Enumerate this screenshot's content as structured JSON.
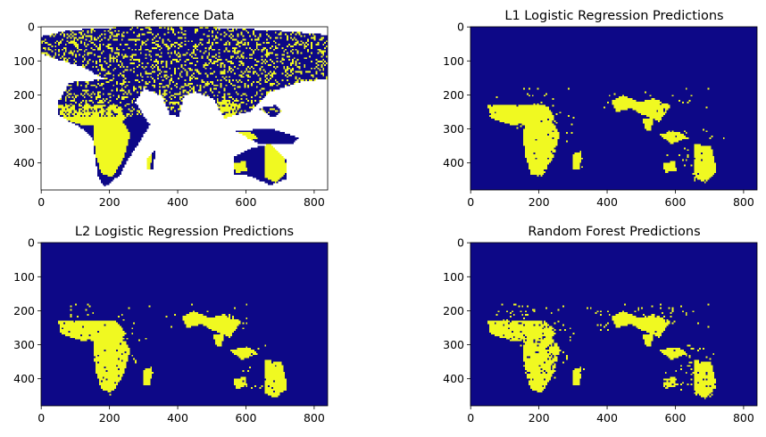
{
  "figure": {
    "background": "#ffffff",
    "colors": {
      "class_0": "#0d0887",
      "class_1": "#f0f921",
      "nodata": "#ffffff",
      "axis": "#000000"
    }
  },
  "chart_data": [
    {
      "type": "heatmap",
      "title": "Reference Data",
      "xlabel": "",
      "ylabel": "",
      "xlim": [
        -0.5,
        839.5
      ],
      "ylim": [
        479.5,
        -0.5
      ],
      "xticks": [
        0,
        200,
        400,
        600,
        800
      ],
      "yticks": [
        0,
        100,
        200,
        300,
        400
      ],
      "colormap": "plasma",
      "values": "binary class raster (0 = not target, 1 = target), white = no data / ocean",
      "has_nodata": true,
      "noise": 0.22
    },
    {
      "type": "heatmap",
      "title": "L1 Logistic Regression Predictions",
      "xlabel": "",
      "ylabel": "",
      "xlim": [
        -0.5,
        839.5
      ],
      "ylim": [
        479.5,
        -0.5
      ],
      "xticks": [
        0,
        200,
        400,
        600,
        800
      ],
      "yticks": [
        0,
        100,
        200,
        300,
        400
      ],
      "colormap": "plasma",
      "has_nodata": false,
      "noise": 0.03
    },
    {
      "type": "heatmap",
      "title": "L2 Logistic Regression Predictions",
      "xlabel": "",
      "ylabel": "",
      "xlim": [
        -0.5,
        839.5
      ],
      "ylim": [
        479.5,
        -0.5
      ],
      "xticks": [
        0,
        200,
        400,
        600,
        800
      ],
      "yticks": [
        0,
        100,
        200,
        300,
        400
      ],
      "colormap": "plasma",
      "has_nodata": false,
      "noise": 0.03
    },
    {
      "type": "heatmap",
      "title": "Random Forest Predictions",
      "xlabel": "",
      "ylabel": "",
      "xlim": [
        -0.5,
        839.5
      ],
      "ylim": [
        479.5,
        -0.5
      ],
      "xticks": [
        0,
        200,
        400,
        600,
        800
      ],
      "yticks": [
        0,
        100,
        200,
        300,
        400
      ],
      "colormap": "plasma",
      "has_nodata": false,
      "noise": 0.07
    }
  ]
}
